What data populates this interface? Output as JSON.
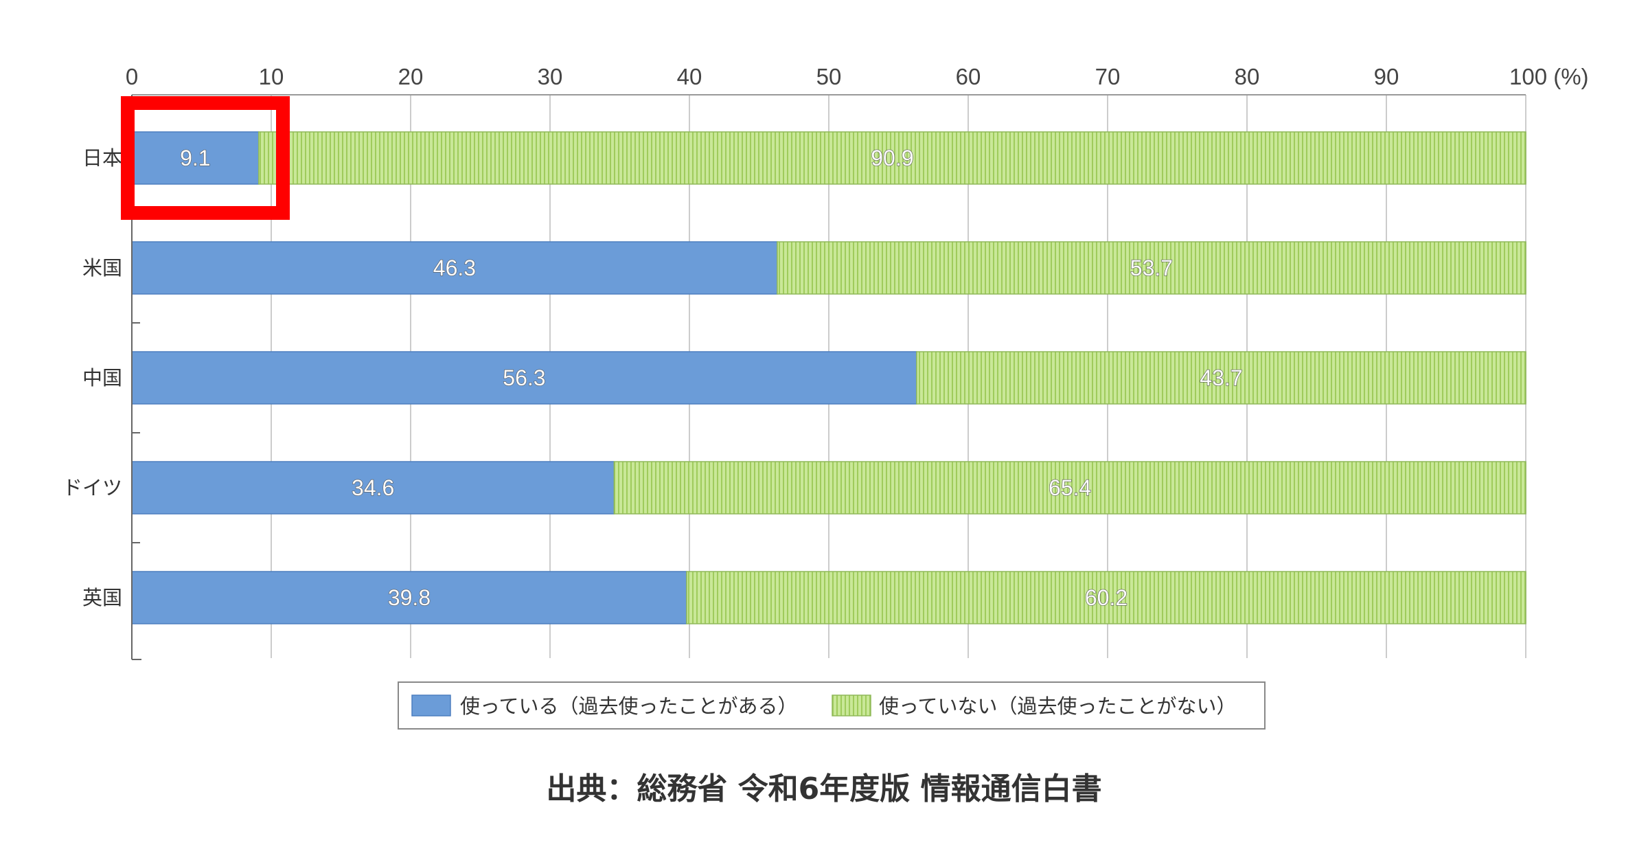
{
  "chart_data": {
    "type": "bar",
    "orientation": "horizontal",
    "stacked": true,
    "categories": [
      "日本",
      "米国",
      "中国",
      "ドイツ",
      "英国"
    ],
    "series": [
      {
        "name": "使っている（過去使ったことがある）",
        "values": [
          9.1,
          46.3,
          56.3,
          34.6,
          39.8
        ]
      },
      {
        "name": "使っていない（過去使ったことがない）",
        "values": [
          90.9,
          53.7,
          43.7,
          65.4,
          60.2
        ]
      }
    ],
    "xlim": [
      0,
      100
    ],
    "x_ticks": [
      "0",
      "10",
      "20",
      "30",
      "40",
      "50",
      "60",
      "70",
      "80",
      "90",
      "100 (%)"
    ],
    "grid": true,
    "legend_position": "bottom",
    "highlight": {
      "category": "日本",
      "series": "使っている（過去使ったことがある）",
      "color": "#ff0000"
    }
  },
  "colors": {
    "series_used": "#6b9cd8",
    "series_not_used": "#c2e28c",
    "grid": "#cccccc",
    "highlight": "#ff0000"
  },
  "source": "出典：総務省 令和6年度版 情報通信白書"
}
